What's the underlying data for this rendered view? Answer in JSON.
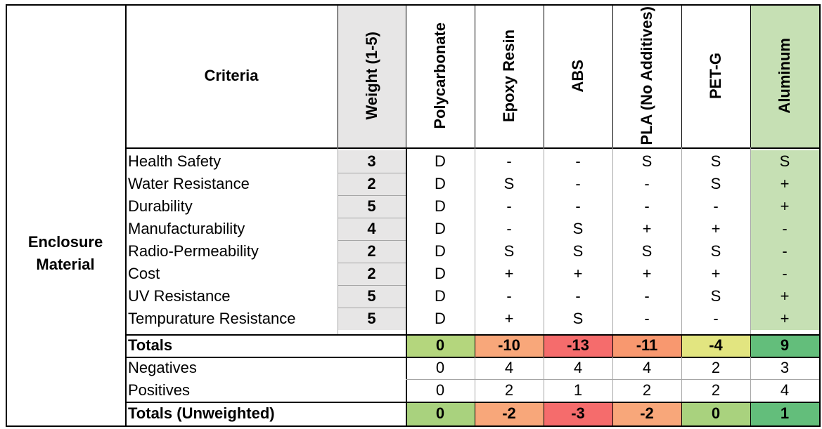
{
  "section_label": "Enclosure Material",
  "criteria_header": "Criteria",
  "weight_header": "Weight (1-5)",
  "materials": [
    {
      "name": "Polycarbonate",
      "color": "#ffffff"
    },
    {
      "name": "Epoxy Resin",
      "color": "#ffffff"
    },
    {
      "name": "ABS",
      "color": "#ffffff"
    },
    {
      "name": "PLA (No Additives)",
      "color": "#ffffff"
    },
    {
      "name": "PET-G",
      "color": "#ffffff"
    },
    {
      "name": "Aluminum",
      "color": "#c6e0b4"
    }
  ],
  "criteria": [
    {
      "name": "Health Safety",
      "weight": "3",
      "ratings": [
        "D",
        "-",
        "-",
        "S",
        "S",
        "S"
      ]
    },
    {
      "name": "Water Resistance",
      "weight": "2",
      "ratings": [
        "D",
        "S",
        "-",
        "-",
        "S",
        "+"
      ]
    },
    {
      "name": "Durability",
      "weight": "5",
      "ratings": [
        "D",
        "-",
        "-",
        "-",
        "-",
        "+"
      ]
    },
    {
      "name": "Manufacturability",
      "weight": "4",
      "ratings": [
        "D",
        "-",
        "S",
        "+",
        "+",
        "-"
      ]
    },
    {
      "name": "Radio-Permeability",
      "weight": "2",
      "ratings": [
        "D",
        "S",
        "S",
        "S",
        "S",
        "-"
      ]
    },
    {
      "name": "Cost",
      "weight": "2",
      "ratings": [
        "D",
        "+",
        "+",
        "+",
        "+",
        "-"
      ]
    },
    {
      "name": "UV Resistance",
      "weight": "5",
      "ratings": [
        "D",
        "-",
        "-",
        "-",
        "S",
        "+"
      ]
    },
    {
      "name": "Tempurature Resistance",
      "weight": "5",
      "ratings": [
        "D",
        "+",
        "S",
        "-",
        "-",
        "+"
      ]
    }
  ],
  "totals": {
    "label": "Totals",
    "values": [
      "0",
      "-10",
      "-13",
      "-11",
      "-4",
      "9"
    ],
    "colors": [
      "#b4d67d",
      "#f8a77a",
      "#f56c6c",
      "#f8986f",
      "#e2e580",
      "#63be7b"
    ]
  },
  "negatives": {
    "label": "Negatives",
    "values": [
      "0",
      "4",
      "4",
      "4",
      "2",
      "3"
    ]
  },
  "positives": {
    "label": "Positives",
    "values": [
      "0",
      "2",
      "1",
      "2",
      "2",
      "4"
    ]
  },
  "totals_unweighted": {
    "label": "Totals (Unweighted)",
    "values": [
      "0",
      "-2",
      "-3",
      "-2",
      "0",
      "1"
    ],
    "colors": [
      "#a9d27e",
      "#f8a77a",
      "#f56c6c",
      "#f8a77a",
      "#a9d27e",
      "#63be7b"
    ]
  },
  "colors": {
    "header_gray": "#e7e6e6",
    "aluminum_green": "#c6e0b4"
  }
}
